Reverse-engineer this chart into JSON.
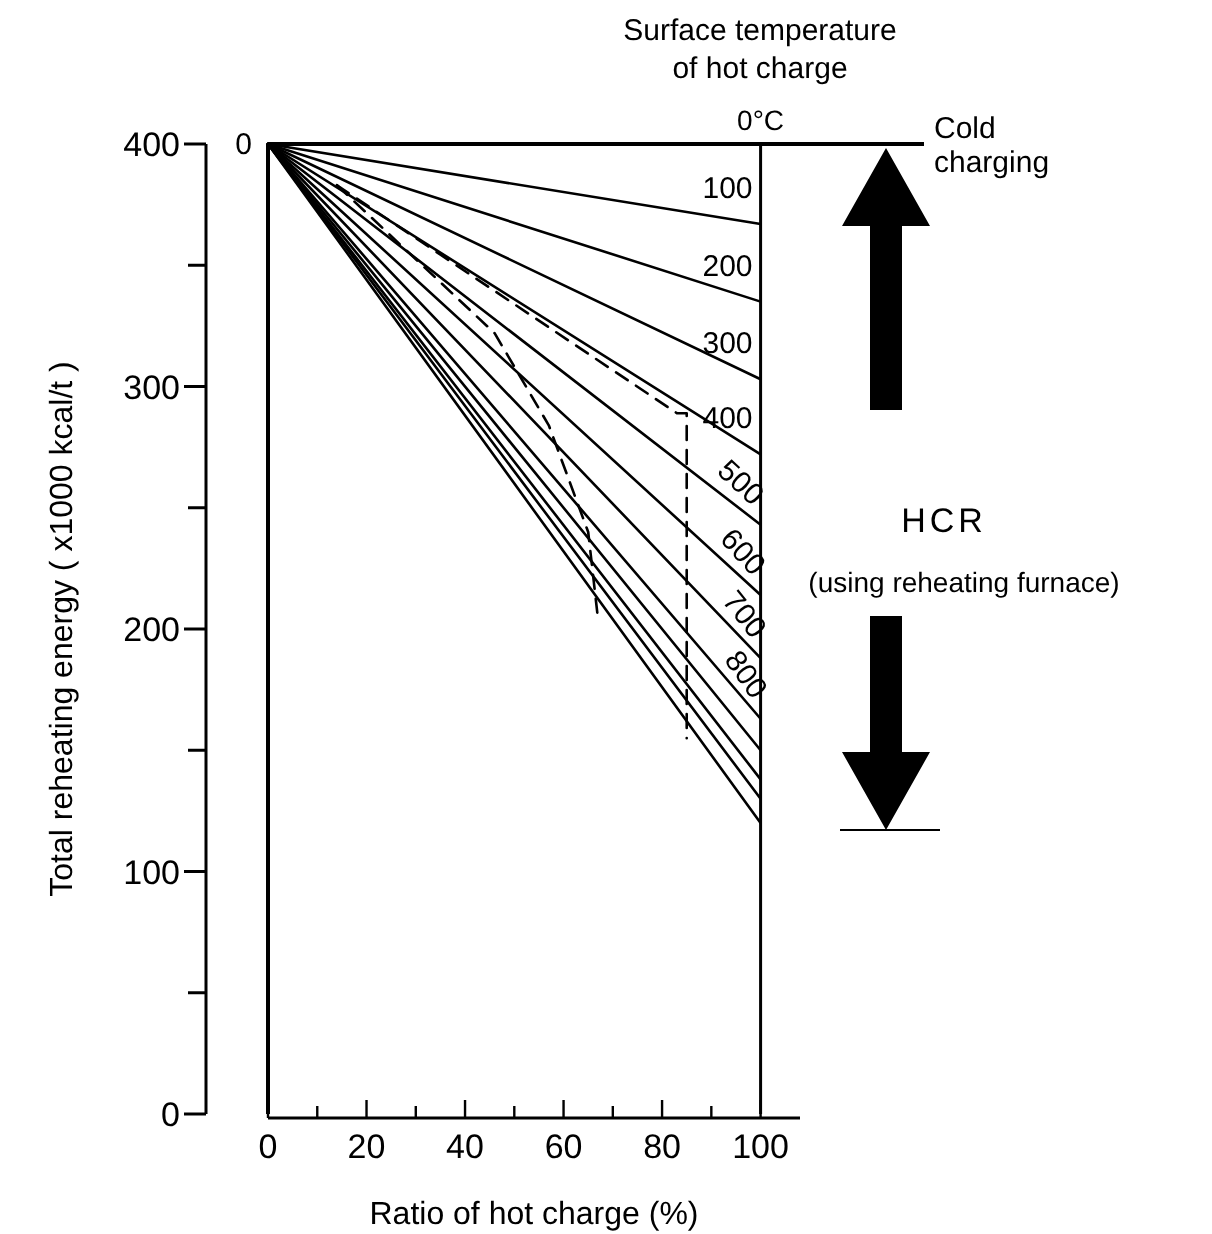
{
  "chart_data": {
    "type": "line",
    "xlabel": "Ratio of hot charge (%)",
    "ylabel": "Total reheating energy  ( x1000 kcal/t )",
    "legend_title": "Surface temperature\nof hot charge",
    "x": [
      0,
      100
    ],
    "xlim": [
      0,
      108
    ],
    "ylim": [
      0,
      400
    ],
    "xticks": [
      0,
      {
        "value": 10,
        "label": null
      },
      20,
      {
        "value": 30,
        "label": null
      },
      40,
      {
        "value": 50,
        "label": null
      },
      60,
      {
        "value": 70,
        "label": null
      },
      80,
      {
        "value": 90,
        "label": null
      },
      100
    ],
    "yticks": [
      0,
      100,
      200,
      300,
      400
    ],
    "grid": false,
    "marker": "none",
    "line_style": "solid",
    "series": [
      {
        "name": "100",
        "color": "#000000",
        "values": [
          400,
          367
        ]
      },
      {
        "name": "200",
        "color": "#000000",
        "values": [
          400,
          335
        ]
      },
      {
        "name": "300",
        "color": "#000000",
        "values": [
          400,
          303
        ]
      },
      {
        "name": "400",
        "color": "#000000",
        "values": [
          400,
          272
        ]
      },
      {
        "name": "500",
        "color": "#000000",
        "values": [
          400,
          243
        ]
      },
      {
        "name": "600",
        "color": "#000000",
        "values": [
          400,
          214
        ]
      },
      {
        "name": "700",
        "color": "#000000",
        "values": [
          400,
          188
        ]
      },
      {
        "name": "800",
        "color": "#000000",
        "values": [
          400,
          163
        ]
      },
      {
        "color": "#000000",
        "values": [
          400,
          150
        ]
      },
      {
        "color": "#000000",
        "values": [
          400,
          138
        ]
      },
      {
        "color": "#000000",
        "values": [
          400,
          130
        ]
      },
      {
        "color": "#000000",
        "values": [
          400,
          120
        ]
      },
      {
        "color": "#000000",
        "line_style": "dashed",
        "x": [
          14,
          83,
          85,
          85
        ],
        "values": [
          383,
          289,
          289,
          155
        ]
      },
      {
        "color": "#000000",
        "line_style": "dashed",
        "x": [
          14,
          46,
          57,
          65,
          67
        ],
        "values": [
          383,
          322,
          284,
          240,
          204
        ]
      }
    ],
    "ref_lines": [
      {
        "axis": "y",
        "value": 400,
        "label": "Cold charging"
      },
      {
        "axis": "x",
        "value": 100
      }
    ],
    "annotations": [
      {
        "text": "0",
        "x": 0,
        "y": 400
      },
      {
        "text": "0°C",
        "x": 100,
        "y": 400
      },
      "HCR",
      "(using reheating furnace)"
    ]
  }
}
